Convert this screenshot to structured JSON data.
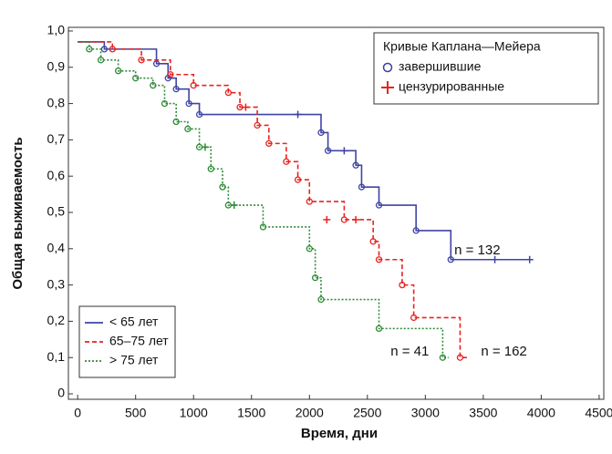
{
  "chart_data": {
    "type": "step",
    "xlabel": "Время, дни",
    "ylabel": "Общая выживаемость",
    "xlim": [
      -80,
      4540
    ],
    "ylim": [
      -0.015,
      1.01
    ],
    "xticks": [
      0,
      500,
      1000,
      1500,
      2000,
      2500,
      3000,
      3500,
      4000,
      4500
    ],
    "yticks": [
      0,
      {
        "value": 0.1,
        "label": "0,1"
      },
      {
        "value": 0.2,
        "label": "0,2"
      },
      {
        "value": 0.3,
        "label": "0,3"
      },
      {
        "value": 0.4,
        "label": "0,4"
      },
      {
        "value": 0.5,
        "label": "0,5"
      },
      {
        "value": 0.6,
        "label": "0,6"
      },
      {
        "value": 0.7,
        "label": "0,7"
      },
      {
        "value": 0.8,
        "label": "0,8"
      },
      {
        "value": 0.9,
        "label": "0,9"
      },
      {
        "value": 1.0,
        "label": "1,0"
      }
    ],
    "marker_legend": {
      "title": "Кривые Каплана—Мейера",
      "event": "завершившие",
      "censored": "цензурированные",
      "censored_color": "#e8231f",
      "event_color": "#3b3fa0"
    },
    "series": [
      {
        "name": "< 65 лет",
        "color": "#3f44a3",
        "dash": "solid",
        "x": [
          0,
          230,
          680,
          780,
          850,
          960,
          1050,
          2100,
          2160,
          2400,
          2450,
          2600,
          2920,
          3220,
          3900
        ],
        "values": [
          0.97,
          0.95,
          0.91,
          0.87,
          0.84,
          0.8,
          0.77,
          0.72,
          0.67,
          0.63,
          0.57,
          0.52,
          0.45,
          0.37,
          0.37
        ],
        "censored_x": [
          1900,
          2300,
          3600,
          3900
        ],
        "censored_y": [
          0.77,
          0.67,
          0.37,
          0.37
        ]
      },
      {
        "name": "65–75 лет",
        "color": "#e8231f",
        "dash": "dashed",
        "x": [
          0,
          300,
          550,
          800,
          1000,
          1300,
          1400,
          1550,
          1650,
          1800,
          1900,
          2000,
          2300,
          2550,
          2600,
          2800,
          2900,
          3300,
          3370
        ],
        "values": [
          0.97,
          0.95,
          0.92,
          0.88,
          0.85,
          0.83,
          0.79,
          0.74,
          0.69,
          0.64,
          0.59,
          0.53,
          0.48,
          0.42,
          0.37,
          0.3,
          0.21,
          0.1,
          0.1
        ],
        "censored_x": [
          1450,
          2150,
          2400
        ],
        "censored_y": [
          0.79,
          0.48,
          0.48
        ]
      },
      {
        "name": "> 75 лет",
        "color": "#2e8a35",
        "dash": "dotted",
        "x": [
          0,
          100,
          200,
          350,
          500,
          650,
          750,
          850,
          950,
          1050,
          1150,
          1250,
          1300,
          1600,
          2000,
          2050,
          2100,
          2600,
          3150,
          3200
        ],
        "values": [
          0.97,
          0.95,
          0.92,
          0.89,
          0.87,
          0.85,
          0.8,
          0.75,
          0.73,
          0.68,
          0.62,
          0.57,
          0.52,
          0.46,
          0.4,
          0.32,
          0.26,
          0.18,
          0.1,
          0.1
        ],
        "censored_x": [
          1100,
          1350
        ],
        "censored_y": [
          0.68,
          0.52
        ]
      }
    ],
    "annotations": [
      {
        "text": "n = 132",
        "x": 3250,
        "y": 0.395
      },
      {
        "text": "n = 41",
        "x": 2700,
        "y": 0.115
      },
      {
        "text": "n = 162",
        "x": 3480,
        "y": 0.115
      }
    ]
  }
}
